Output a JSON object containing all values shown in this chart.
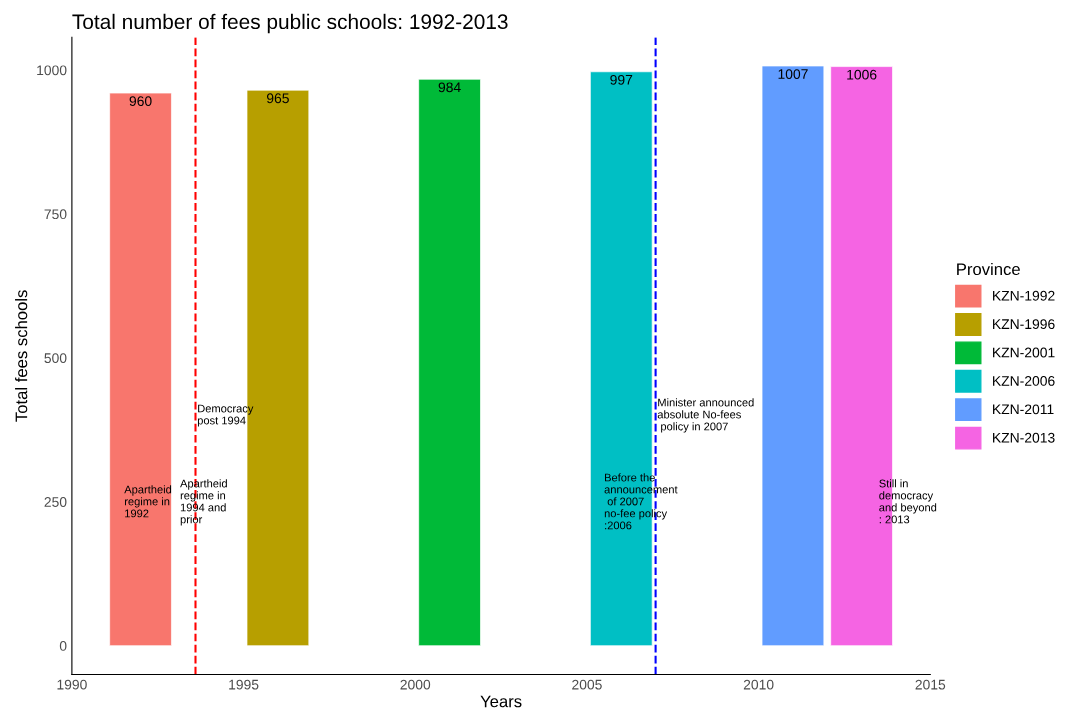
{
  "chart_data": {
    "type": "bar",
    "title": "Total number of fees public schools: 1992-2013",
    "xlabel": "Years",
    "ylabel": "Total fees schools",
    "legend_title": "Province",
    "series": [
      {
        "name": "KZN-1992",
        "color": "#f8766d",
        "x": [
          1992
        ],
        "values": [
          960
        ]
      },
      {
        "name": "KZN-1996",
        "color": "#b79f00",
        "x": [
          1996
        ],
        "values": [
          965
        ]
      },
      {
        "name": "KZN-2001",
        "color": "#00ba38",
        "x": [
          2001
        ],
        "values": [
          984
        ]
      },
      {
        "name": "KZN-2006",
        "color": "#00bfc4",
        "x": [
          2006
        ],
        "values": [
          997
        ]
      },
      {
        "name": "KZN-2011",
        "color": "#619cff",
        "x": [
          2011
        ],
        "values": [
          1007
        ]
      },
      {
        "name": "KZN-2013",
        "color": "#f564e3",
        "x": [
          2013
        ],
        "values": [
          1006
        ]
      }
    ],
    "data_labels": true,
    "xlim": [
      1990,
      2015
    ],
    "xticks": [
      1990,
      1995,
      2000,
      2005,
      2010,
      2015
    ],
    "ylim": [
      -50,
      1057
    ],
    "yticks": [
      0,
      250,
      500,
      750,
      1000
    ],
    "grid": false,
    "legend": "right",
    "ref_lines": [
      {
        "axis": "x",
        "value": 1993.6,
        "color": "#ff0000",
        "line_style": "dashed",
        "label": "Democracy\npost 1994"
      },
      {
        "axis": "x",
        "value": 2007,
        "color": "#0000ff",
        "line_style": "dashed",
        "label": "Minister announced\nabsolute No-fees\n policy in 2007"
      }
    ],
    "annotations": [
      "Apartheid\nregime in\n1992",
      "Apartheid\nregime in\n1994 and\nprior",
      "Before the\nannouncement\n of 2007\nno-fee policy\n:2006",
      "Still in\ndemocracy\nand beyond\n: 2013"
    ]
  }
}
